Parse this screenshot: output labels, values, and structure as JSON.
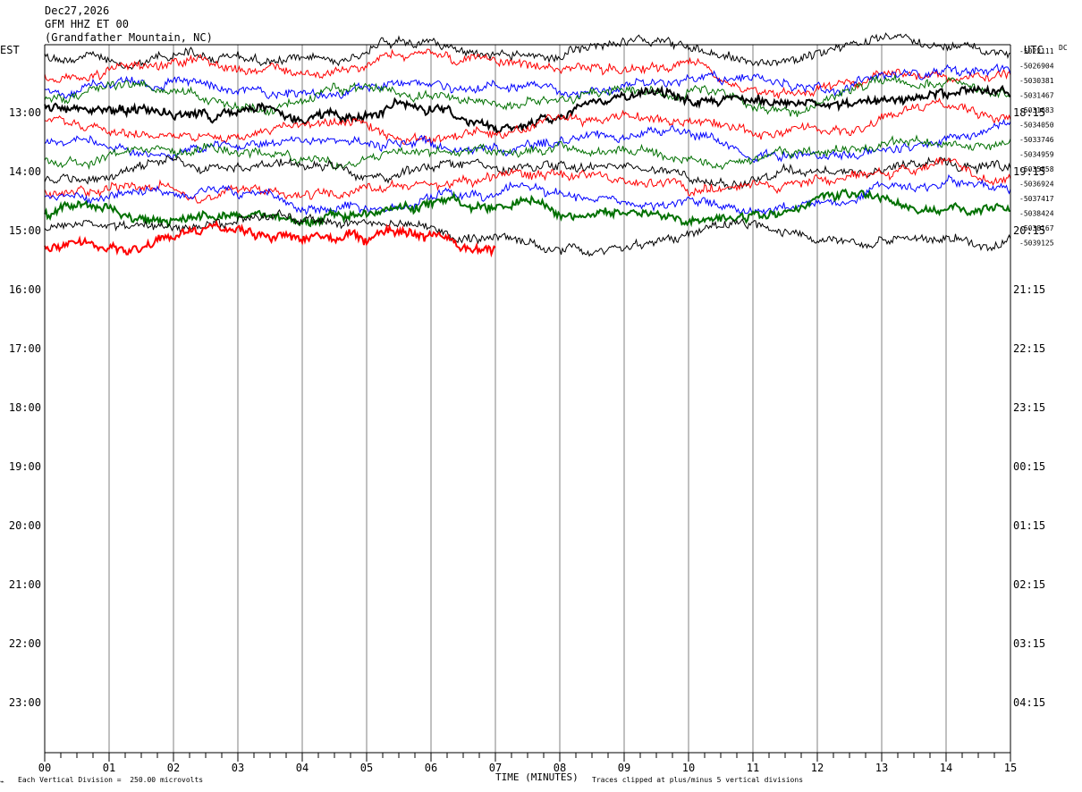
{
  "header": {
    "date": "Dec27,2026",
    "station": "GFM HHZ ET 00",
    "location": "(Grandfather Mountain, NC)"
  },
  "left_axis_label": "EST",
  "right_axis_label": "UTC",
  "dc_label": "DC",
  "footer": {
    "division": "Each Vertical Division =  250.00 microvolts",
    "x_title": "TIME (MINUTES)",
    "clip_note": "Traces clipped at plus/minus 5 vertical divisions"
  },
  "colors": {
    "black": "#000000",
    "red": "#ff0000",
    "blue": "#0000ff",
    "green": "#007000",
    "grid": "#808080"
  },
  "chart_data": {
    "type": "line",
    "title": "GFM HHZ ET 00",
    "xlabel": "TIME (MINUTES)",
    "xlim": [
      0,
      15
    ],
    "x_ticks": [
      "00",
      "01",
      "02",
      "03",
      "04",
      "05",
      "06",
      "07",
      "08",
      "09",
      "10",
      "11",
      "12",
      "13",
      "14",
      "15"
    ],
    "est_hour_labels": [
      "13:00",
      "14:00",
      "15:00",
      "16:00",
      "17:00",
      "18:00",
      "19:00",
      "20:00",
      "21:00",
      "22:00",
      "23:00"
    ],
    "utc_hour_labels": [
      "18:15",
      "19:15",
      "20:15",
      "21:15",
      "22:15",
      "23:15",
      "00:15",
      "01:15",
      "02:15",
      "03:15",
      "04:15"
    ],
    "rows_per_hour": 4,
    "trace_colors": [
      "black",
      "red",
      "blue",
      "green"
    ],
    "dc_offsets": [
      "-5022111",
      "-5026904",
      "-5030381",
      "-5031467",
      "-5031683",
      "-5034050",
      "-5033746",
      "-5034959",
      "-5035858",
      "-5036924",
      "-5037417",
      "-5038424",
      "-5038167",
      "-5039125"
    ],
    "traces_recorded": 14,
    "last_trace_end_minute": 7,
    "vertical_division_microvolts": 250.0,
    "clip_divisions": 5
  }
}
